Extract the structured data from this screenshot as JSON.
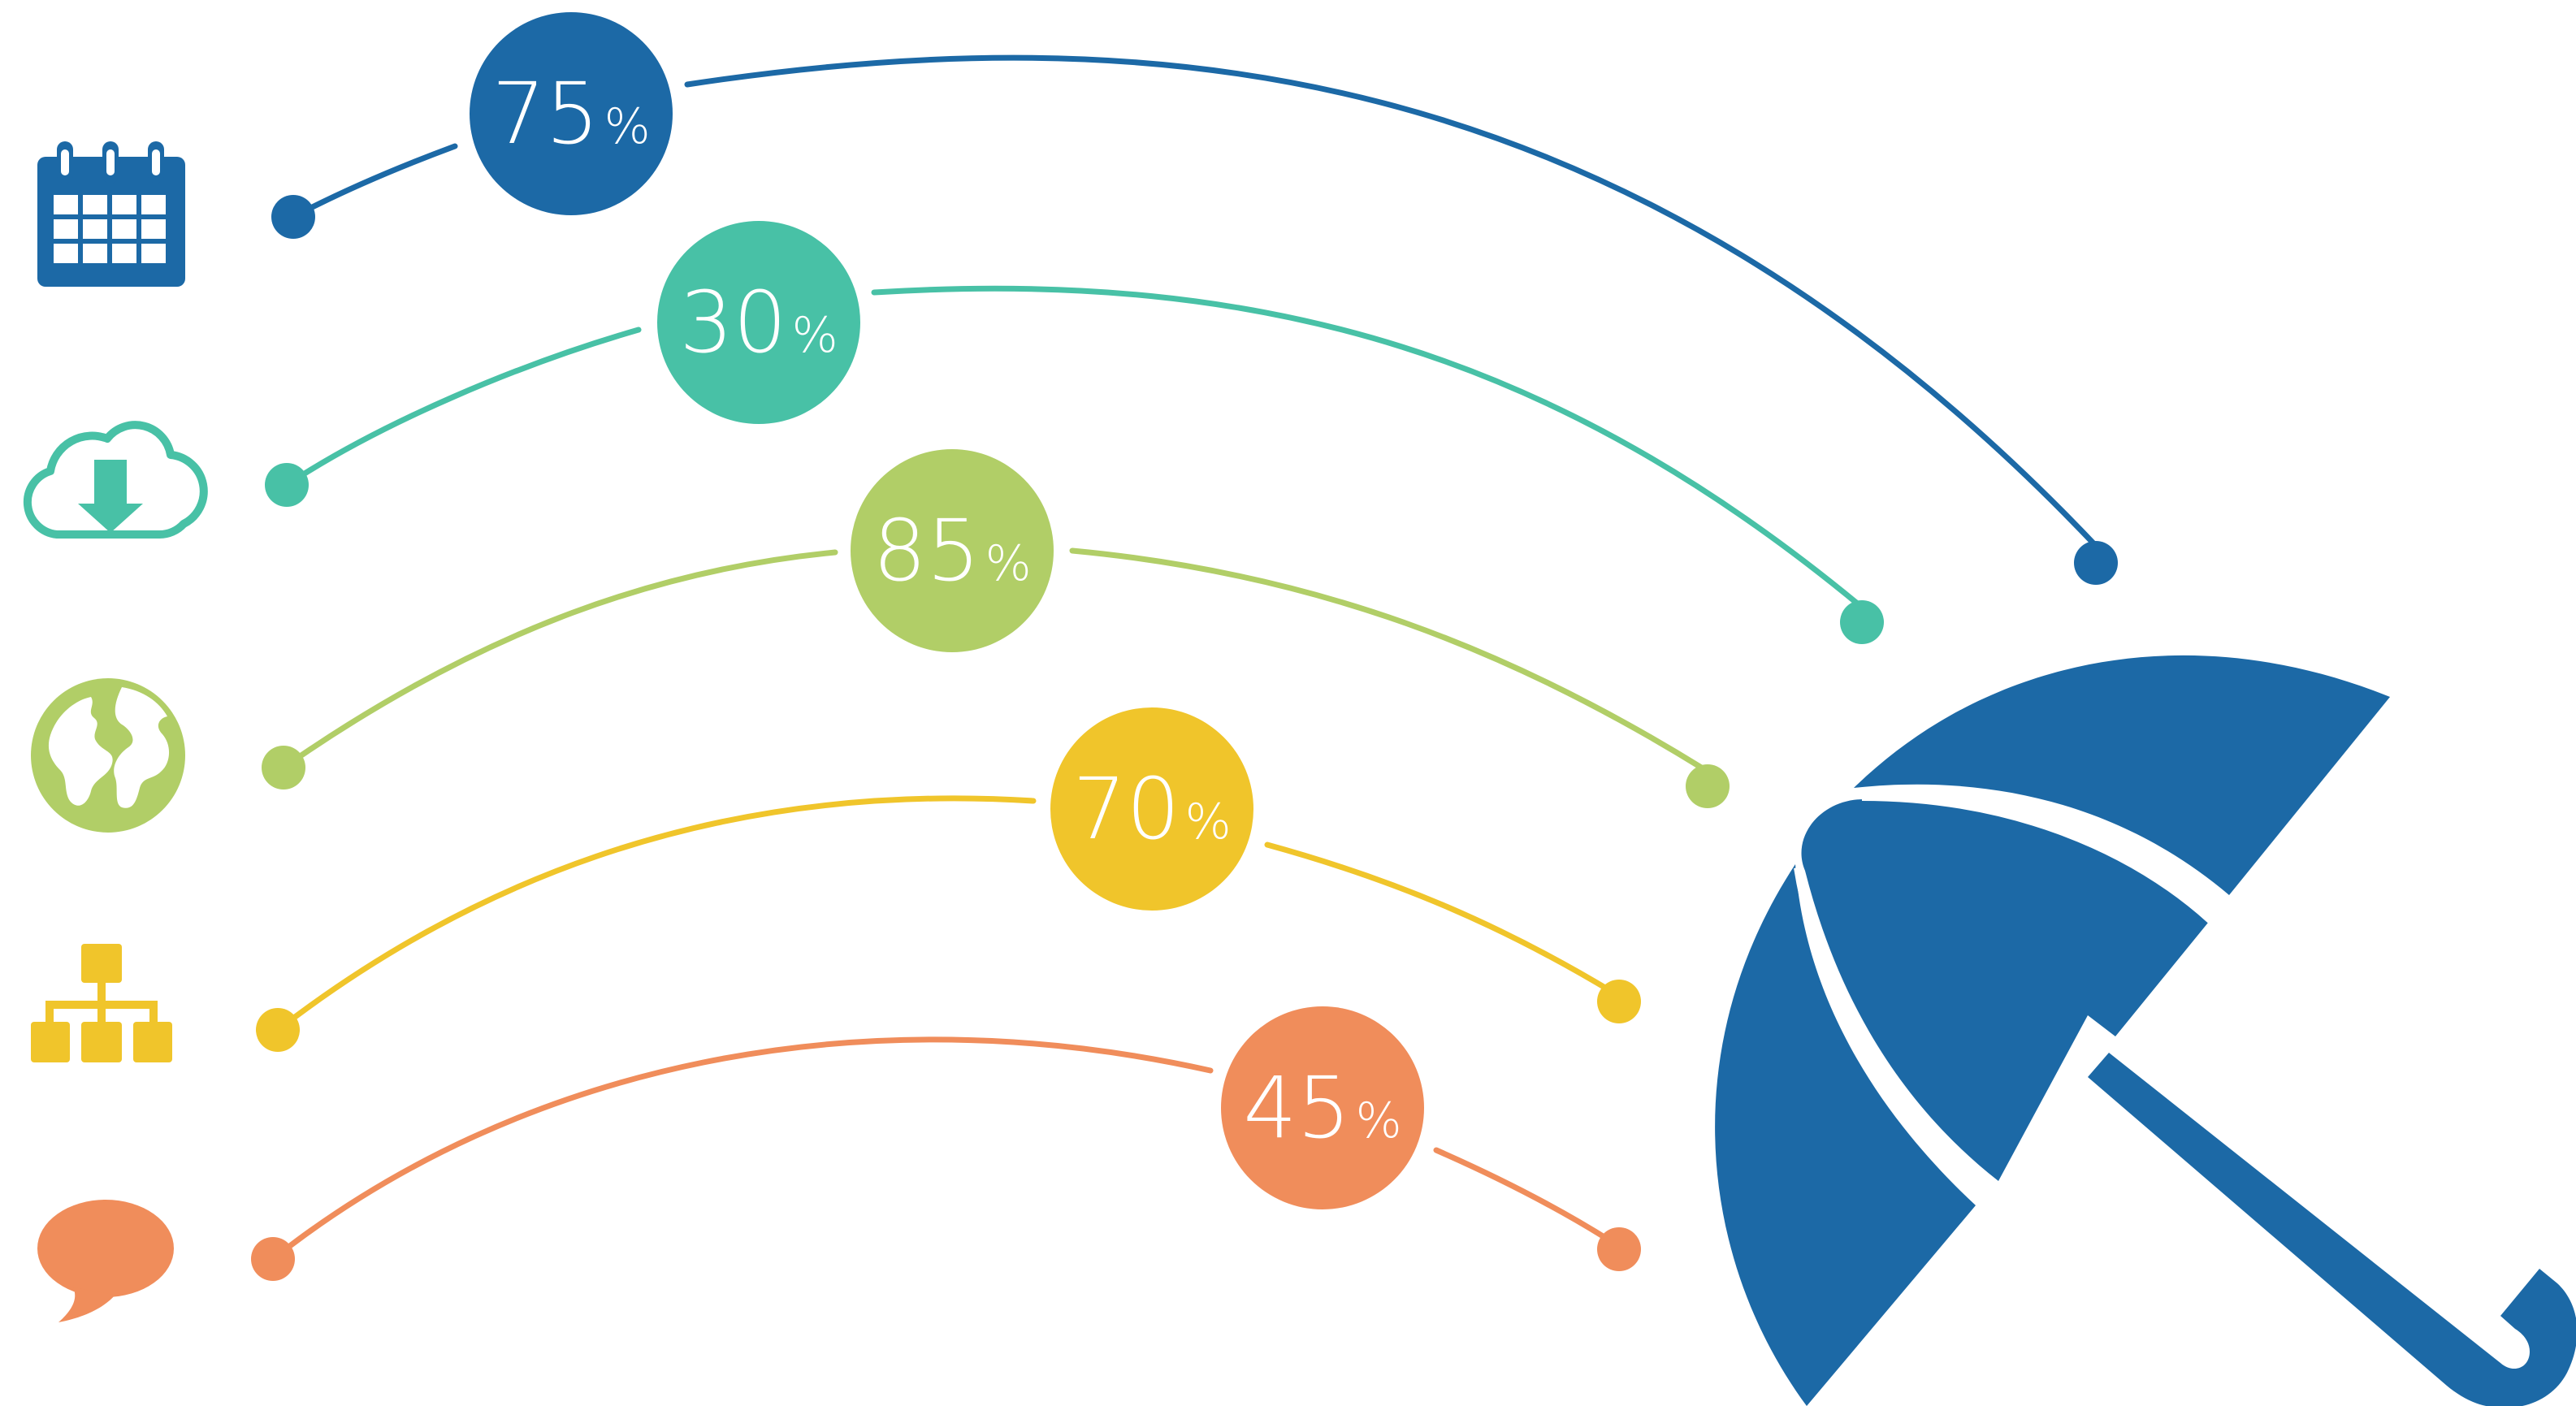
{
  "colors": {
    "blue": "#1c69a6",
    "teal": "#48c1a6",
    "green": "#b1ce67",
    "yellow": "#f0c52b",
    "orange": "#f08d5b",
    "white": "#ffffff"
  },
  "rows": [
    {
      "icon": "calendar-icon",
      "color": "blue",
      "value": "75",
      "unit": "%"
    },
    {
      "icon": "cloud-download-icon",
      "color": "teal",
      "value": "30",
      "unit": "%"
    },
    {
      "icon": "globe-icon",
      "color": "green",
      "value": "85",
      "unit": "%"
    },
    {
      "icon": "sitemap-icon",
      "color": "yellow",
      "value": "70",
      "unit": "%"
    },
    {
      "icon": "speech-bubble-icon",
      "color": "orange",
      "value": "45",
      "unit": "%"
    }
  ],
  "umbrella": {
    "icon": "umbrella-icon",
    "color": "blue"
  }
}
